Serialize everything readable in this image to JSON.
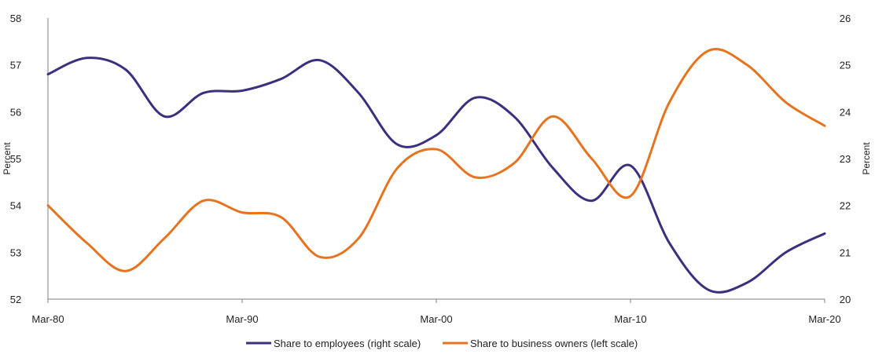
{
  "chart_data": {
    "type": "line",
    "x": [
      "Mar-80",
      "Mar-82",
      "Mar-84",
      "Mar-86",
      "Mar-88",
      "Mar-90",
      "Mar-92",
      "Mar-94",
      "Mar-96",
      "Mar-98",
      "Mar-00",
      "Mar-02",
      "Mar-04",
      "Mar-06",
      "Mar-08",
      "Mar-10",
      "Mar-12",
      "Mar-14",
      "Mar-16",
      "Mar-18",
      "Mar-20"
    ],
    "x_tick_labels": [
      "Mar-80",
      "Mar-90",
      "Mar-00",
      "Mar-10",
      "Mar-20"
    ],
    "x_tick_index": [
      0,
      5,
      10,
      15,
      20
    ],
    "left_axis": {
      "label": "Percent",
      "lim": [
        52,
        58
      ],
      "ticks": [
        "52",
        "53",
        "54",
        "55",
        "56",
        "57",
        "58"
      ]
    },
    "right_axis": {
      "label": "Percent",
      "lim": [
        20,
        26
      ],
      "ticks": [
        "20",
        "21",
        "22",
        "23",
        "24",
        "25",
        "26"
      ]
    },
    "series": [
      {
        "name": "Share to employees (right scale)",
        "axis": "right",
        "color": "#3b2f7f",
        "values": [
          24.8,
          25.15,
          24.9,
          23.9,
          24.4,
          24.45,
          24.7,
          25.1,
          24.4,
          23.3,
          23.5,
          24.3,
          23.9,
          22.8,
          22.1,
          22.85,
          21.2,
          20.2,
          20.35,
          21.0,
          21.4
        ]
      },
      {
        "name": "Share to business owners (left scale)",
        "axis": "left",
        "color": "#e8731f",
        "values": [
          54.0,
          53.2,
          52.6,
          53.3,
          54.1,
          53.85,
          53.75,
          52.9,
          53.3,
          54.8,
          55.2,
          54.6,
          54.9,
          55.9,
          55.0,
          54.2,
          56.2,
          57.3,
          57.0,
          56.2,
          55.7
        ]
      }
    ],
    "grid": false,
    "legend_position": "bottom"
  }
}
